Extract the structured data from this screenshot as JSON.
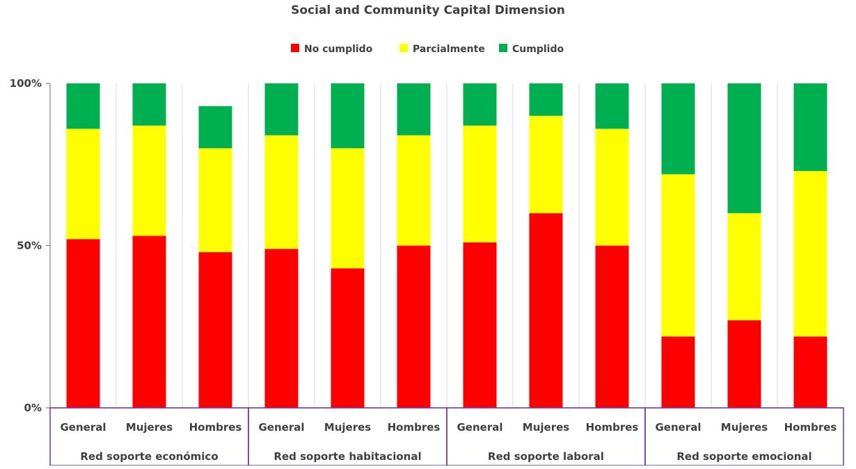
{
  "chart_data": {
    "type": "bar",
    "stacked": true,
    "title": "Social and Community Capital Dimension",
    "legend_position": "top",
    "y_ticks": [
      "0%",
      "50%",
      "100%"
    ],
    "ylim": [
      0,
      100
    ],
    "grid": "vertical",
    "groups": [
      {
        "name": "Red soporte económico",
        "categories": [
          "General",
          "Mujeres",
          "Hombres"
        ]
      },
      {
        "name": "Red soporte habitacional",
        "categories": [
          "General",
          "Mujeres",
          "Hombres"
        ]
      },
      {
        "name": "Red soporte laboral",
        "categories": [
          "General",
          "Mujeres",
          "Hombres"
        ]
      },
      {
        "name": "Red soporte emocional",
        "categories": [
          "General",
          "Mujeres",
          "Hombres"
        ]
      }
    ],
    "series": [
      {
        "name": "No cumplido",
        "color": "#FF0000",
        "values": [
          52,
          53,
          48,
          49,
          43,
          50,
          51,
          60,
          50,
          22,
          27,
          22
        ]
      },
      {
        "name": "Parcialmente",
        "color": "#FFFF00",
        "values": [
          34,
          34,
          32,
          35,
          37,
          34,
          36,
          30,
          36,
          50,
          33,
          51
        ]
      },
      {
        "name": "Cumplido",
        "color": "#00B050",
        "values": [
          14,
          13,
          13,
          16,
          20,
          16,
          13,
          10,
          14,
          28,
          40,
          27
        ]
      }
    ]
  }
}
